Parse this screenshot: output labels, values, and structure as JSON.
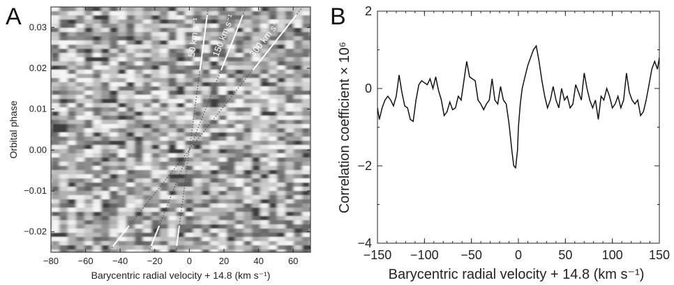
{
  "chart_data": [
    {
      "panel_label": "A",
      "type": "heatmap",
      "xlabel": "Barycentric radial velocity + 14.8 (km s⁻¹)",
      "ylabel": "Orbital phase",
      "xlim": [
        -80,
        70
      ],
      "ylim": [
        -0.025,
        0.035
      ],
      "xticks": [
        -80,
        -60,
        -40,
        -20,
        0,
        20,
        40,
        60
      ],
      "yticks": [
        -0.02,
        -0.01,
        0.0,
        0.01,
        0.02,
        0.03
      ],
      "yticklabels": [
        "−0.02",
        "−0.01",
        "0.00",
        "0.01",
        "0.02",
        "0.03"
      ],
      "xticklabels": [
        "−80",
        "−60",
        "−40",
        "−20",
        "0",
        "20",
        "40",
        "60"
      ],
      "colormap": "grayscale",
      "model_tracks": [
        {
          "label": "50 km s⁻¹",
          "K": 50
        },
        {
          "label": "150 km s⁻¹",
          "K": 150
        },
        {
          "label": "300 km s⁻¹",
          "K": 300
        }
      ]
    },
    {
      "panel_label": "B",
      "type": "line",
      "xlabel": "Barycentric radial velocity + 14.8 (km s⁻¹)",
      "ylabel": "Correlation coefficient × 10⁶",
      "xlim": [
        -150,
        150
      ],
      "ylim": [
        -4,
        2
      ],
      "xticks": [
        -150,
        -100,
        -50,
        0,
        50,
        100,
        150
      ],
      "xticklabels": [
        "−150",
        "−100",
        "−50",
        "0",
        "50",
        "100",
        "150"
      ],
      "yticks": [
        -4,
        -2,
        0,
        2
      ],
      "yticklabels": [
        "−4",
        "−2",
        "0",
        "2"
      ],
      "series": [
        {
          "x": [
            -150,
            -148,
            -145,
            -142,
            -139,
            -136,
            -133,
            -130,
            -127,
            -124,
            -121,
            -118,
            -115,
            -112,
            -109,
            -106,
            -103,
            -100,
            -97,
            -94,
            -91,
            -88,
            -85,
            -82,
            -79,
            -76,
            -73,
            -70,
            -67,
            -64,
            -61,
            -58,
            -55,
            -52,
            -49,
            -46,
            -43,
            -40,
            -37,
            -34,
            -31,
            -28,
            -25,
            -22,
            -19,
            -16,
            -13,
            -10,
            -7,
            -5,
            -3,
            -1,
            0,
            2,
            4,
            7,
            10,
            13,
            16,
            19,
            22,
            25,
            28,
            31,
            34,
            37,
            40,
            43,
            46,
            49,
            52,
            55,
            58,
            61,
            64,
            67,
            70,
            73,
            76,
            79,
            82,
            85,
            88,
            91,
            94,
            97,
            100,
            103,
            106,
            109,
            112,
            115,
            118,
            121,
            124,
            127,
            130,
            133,
            136,
            139,
            142,
            145,
            148,
            150
          ],
          "y": [
            -0.5,
            -0.8,
            -0.5,
            -0.3,
            -0.2,
            -0.3,
            -0.45,
            -0.2,
            0.35,
            -0.1,
            -0.45,
            -0.5,
            -0.8,
            -0.85,
            -0.3,
            0.1,
            0.2,
            0.15,
            0.1,
            0.25,
            0.0,
            0.3,
            -0.05,
            -0.3,
            -0.7,
            -0.6,
            -0.35,
            -0.55,
            -0.5,
            -0.2,
            -0.3,
            0.2,
            0.7,
            0.3,
            0.25,
            0.2,
            -0.3,
            -0.4,
            -0.55,
            -0.4,
            -0.3,
            0.25,
            -0.3,
            -0.4,
            0.05,
            -0.3,
            -0.4,
            -0.9,
            -1.6,
            -2.0,
            -2.05,
            -1.6,
            -1.0,
            -0.4,
            0.0,
            0.3,
            0.6,
            0.8,
            1.0,
            1.1,
            0.7,
            0.2,
            -0.2,
            -0.5,
            -0.3,
            0.05,
            -0.3,
            -0.5,
            0.0,
            -0.3,
            -0.2,
            -0.5,
            -0.4,
            0.1,
            -0.1,
            -0.3,
            0.4,
            0.0,
            -0.3,
            -0.5,
            -0.3,
            -0.8,
            -0.2,
            -0.3,
            0.0,
            -0.2,
            -0.5,
            -0.4,
            -0.2,
            -0.5,
            -0.3,
            0.4,
            -0.1,
            -0.3,
            -0.4,
            -0.3,
            -0.7,
            -0.6,
            -0.3,
            0.1,
            0.5,
            0.7,
            0.5,
            0.8
          ]
        }
      ]
    }
  ]
}
